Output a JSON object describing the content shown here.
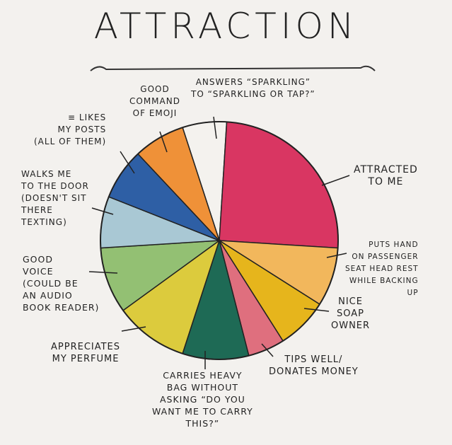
{
  "chart_data": {
    "type": "pie",
    "title": "ATTRACTION",
    "categories": [
      "ANSWERS “SPARKLING”\nTO “SPARKLING OR TAP?”",
      "ATTRACTED\nTO ME",
      "PUTS HAND\nON PASSENGER\nSEAT HEAD REST\nWHILE BACKING\nUP",
      "NICE\nSOAP\nOWNER",
      "TIPS WELL/\nDONATES MONEY",
      "CARRIES HEAVY\nBAG WITHOUT\nASKING “DO YOU\nWANT ME TO CARRY\nTHIS?”",
      "APPRECIATES\nMY PERFUME",
      "GOOD\nVOICE\n(COULD BE\nAN AUDIO\nBOOK READER)",
      "WALKS ME\nTO THE DOOR\n(DOESN'T SIT\nTHERE\nTEXTING)",
      "≡ LIKES\nMY POSTS\n(ALL OF THEM)",
      "GOOD\nCOMMAND\nOF EMOJI"
    ],
    "values": [
      6,
      25,
      8,
      7,
      5,
      9,
      10,
      9,
      7,
      7,
      7
    ],
    "colors": [
      "#f4f2ee",
      "#d93662",
      "#f2b75c",
      "#e6b51c",
      "#df6f7e",
      "#1e6a55",
      "#dccb3d",
      "#93c073",
      "#a9c8d4",
      "#2e5fa5",
      "#ef9138"
    ]
  }
}
